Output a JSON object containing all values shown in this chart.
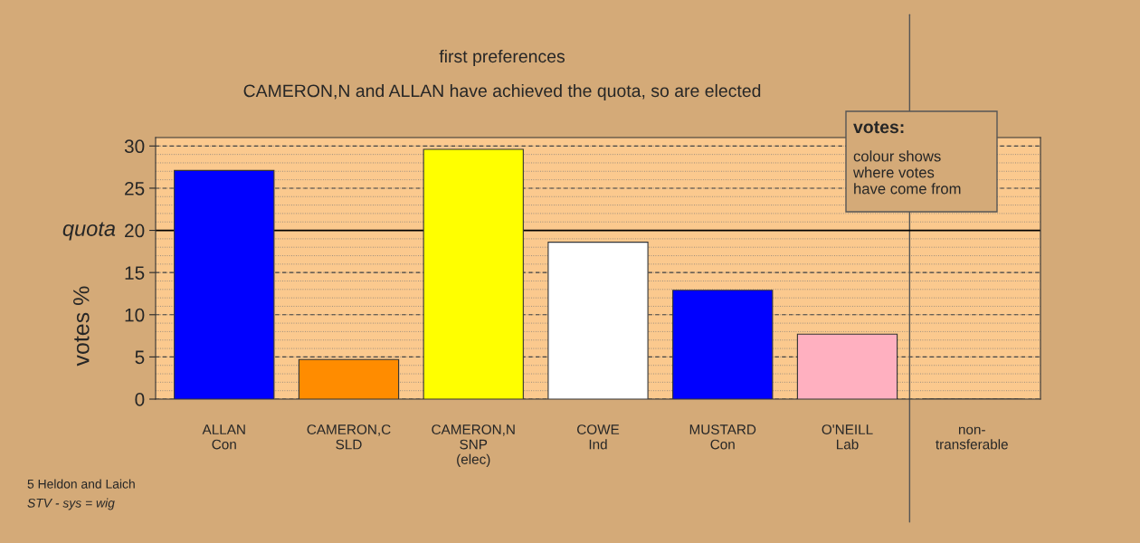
{
  "chart_data": {
    "type": "bar",
    "title": "first preferences",
    "subtitle": "CAMERON,N and ALLAN have achieved the quota, so are elected",
    "ylabel": "votes %",
    "categories": [
      "ALLAN\nCon",
      "CAMERON,C\nSLD",
      "CAMERON,N\nSNP\n(elec)",
      "COWE\nInd",
      "MUSTARD\nCon",
      "O'NEILL\nLab",
      "non-\ntransferable"
    ],
    "values": [
      27.1,
      4.7,
      29.6,
      18.6,
      12.9,
      7.7,
      0
    ],
    "colors": [
      "#0000ff",
      "#ff8c00",
      "#ffff00",
      "#ffffff",
      "#0000ff",
      "#ffb0c0",
      "#ffffff"
    ],
    "ylim": [
      0,
      31
    ],
    "yticks": [
      0,
      5,
      10,
      15,
      20,
      25,
      30
    ],
    "grid": "y",
    "ref_lines": [
      {
        "axis": "y",
        "value": 20,
        "label": "quota",
        "color": "#000000",
        "line_style": "solid"
      },
      {
        "axis": "x",
        "value": "non-\ntransferable",
        "color": "#555555",
        "line_style": "solid"
      }
    ],
    "annotations": [
      "votes:",
      "colour shows\nwhere votes\nhave come from",
      "5 Heldon and Laich",
      "STV - sys = wig"
    ]
  }
}
